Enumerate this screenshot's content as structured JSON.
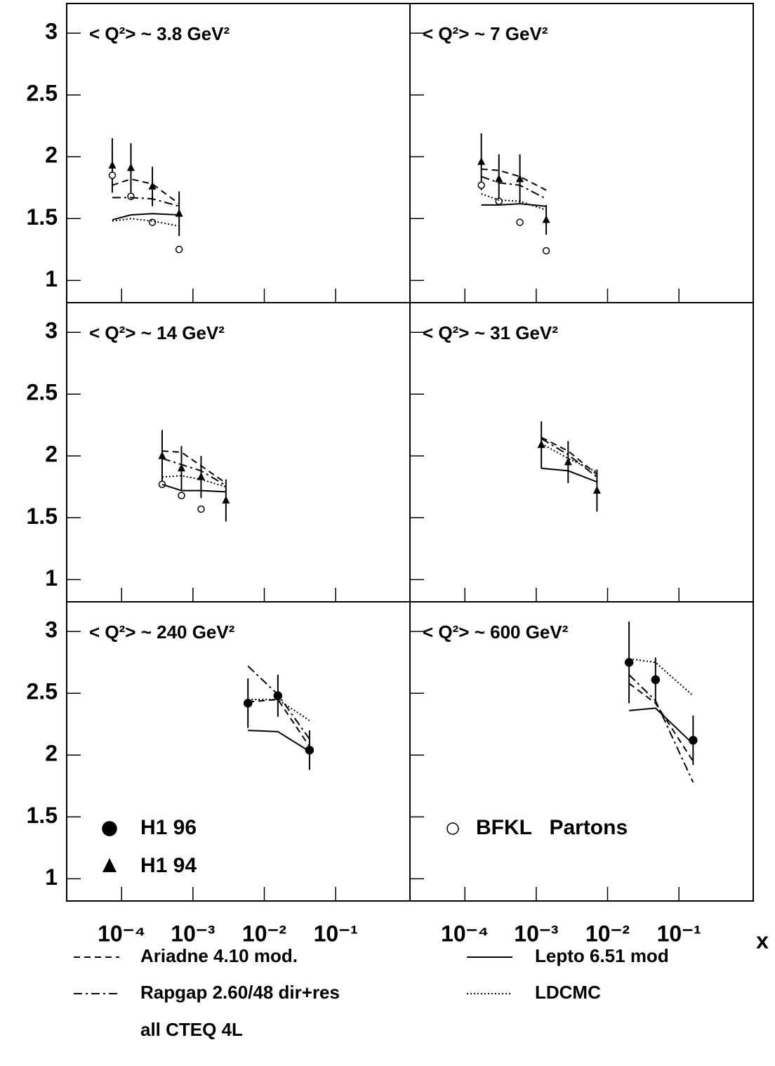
{
  "chart_data": {
    "type": "scatter",
    "log_x": true,
    "x_label": "x",
    "xlim": [
      1.7e-05,
      1.1
    ],
    "xticks": [
      {
        "value": 0.0001,
        "label": "10⁻⁴"
      },
      {
        "value": 0.001,
        "label": "10⁻³"
      },
      {
        "value": 0.01,
        "label": "10⁻²"
      },
      {
        "value": 0.1,
        "label": "10⁻¹"
      }
    ],
    "ylim": [
      0.82,
      3.24
    ],
    "yticks": [
      1,
      1.5,
      2,
      2.5,
      3
    ],
    "series": [
      {
        "name": "H1 96",
        "marker": "filled-circle",
        "color": "#000000"
      },
      {
        "name": "H1 94",
        "marker": "triangle",
        "color": "#000000"
      },
      {
        "name": "BFKL   Partons",
        "marker": "open-circle",
        "color": "#000000"
      },
      {
        "name": "Ariadne 4.10 mod.",
        "line": "dashed",
        "color": "#000000"
      },
      {
        "name": "Rapgap 2.60/48 dir+res",
        "line": "dash-dot",
        "color": "#000000"
      },
      {
        "name": "Lepto 6.51 mod",
        "line": "solid",
        "color": "#000000"
      },
      {
        "name": "LDCMC",
        "line": "dotted",
        "color": "#000000"
      }
    ],
    "note": "all CTEQ 4L",
    "panels": [
      {
        "title": "< Q²> ~ 3.8 GeV²",
        "x": [
          7.4e-05,
          0.000135,
          0.00027,
          0.00064
        ],
        "series": [
          {
            "values": [
              null,
              null,
              null,
              null
            ],
            "errors": [
              null,
              null,
              null,
              null
            ]
          },
          {
            "values": [
              1.93,
              1.91,
              1.76,
              1.54
            ],
            "errors": [
              0.22,
              0.2,
              0.16,
              0.18
            ]
          },
          {
            "values": [
              1.85,
              1.68,
              1.47,
              1.25
            ]
          },
          {
            "values": [
              1.77,
              1.82,
              1.78,
              1.62
            ]
          },
          {
            "values": [
              1.67,
              1.67,
              1.66,
              1.6
            ]
          },
          {
            "values": [
              1.49,
              1.53,
              1.54,
              1.53
            ]
          },
          {
            "values": [
              1.48,
              1.5,
              1.48,
              1.44
            ]
          }
        ]
      },
      {
        "title": "< Q²> ~ 7 GeV²",
        "x": [
          0.00017,
          0.0003,
          0.00059,
          0.00138
        ],
        "series": [
          {
            "values": [
              null,
              null,
              null,
              null
            ],
            "errors": [
              null,
              null,
              null,
              null
            ]
          },
          {
            "values": [
              1.96,
              1.82,
              1.82,
              1.49
            ],
            "errors": [
              0.23,
              0.2,
              0.2,
              0.12
            ]
          },
          {
            "values": [
              1.77,
              1.64,
              1.47,
              1.24
            ]
          },
          {
            "values": [
              1.9,
              1.89,
              1.84,
              1.73
            ]
          },
          {
            "values": [
              1.84,
              1.79,
              1.77,
              1.66
            ]
          },
          {
            "values": [
              1.61,
              1.61,
              1.62,
              1.6
            ]
          },
          {
            "values": [
              1.7,
              1.65,
              1.64,
              1.57
            ]
          }
        ]
      },
      {
        "title": "< Q²> ~ 14 GeV²",
        "x": [
          0.00037,
          0.00069,
          0.0013,
          0.0029
        ],
        "series": [
          {
            "values": [
              null,
              null,
              null,
              null
            ],
            "errors": [
              null,
              null,
              null,
              null
            ]
          },
          {
            "values": [
              2.0,
              1.9,
              1.83,
              1.64
            ],
            "errors": [
              0.21,
              0.18,
              0.17,
              0.17
            ]
          },
          {
            "values": [
              1.77,
              1.68,
              1.57,
              null
            ]
          },
          {
            "values": [
              2.04,
              2.03,
              1.92,
              1.78
            ]
          },
          {
            "values": [
              1.98,
              1.93,
              1.88,
              1.76
            ]
          },
          {
            "values": [
              1.77,
              1.72,
              1.72,
              1.71
            ]
          },
          {
            "values": [
              1.83,
              1.84,
              1.81,
              1.75
            ]
          }
        ]
      },
      {
        "title": "< Q²> ~ 31 GeV²",
        "x": [
          0.00118,
          0.0028,
          0.0071
        ],
        "series": [
          {
            "values": [
              null,
              null,
              null
            ],
            "errors": [
              null,
              null,
              null
            ]
          },
          {
            "values": [
              2.09,
              1.95,
              1.72
            ],
            "errors": [
              0.19,
              0.17,
              0.17
            ]
          },
          {
            "values": [
              null,
              null,
              null
            ]
          },
          {
            "values": [
              2.15,
              2.04,
              1.85
            ]
          },
          {
            "values": [
              2.14,
              2.01,
              1.83
            ]
          },
          {
            "values": [
              1.9,
              1.88,
              1.79
            ]
          },
          {
            "values": [
              2.1,
              1.98,
              1.87
            ]
          }
        ]
      },
      {
        "title": "< Q²> ~ 240 GeV²",
        "x": [
          0.0059,
          0.0155,
          0.043
        ],
        "series": [
          {
            "values": [
              2.42,
              2.48,
              2.04
            ],
            "errors": [
              0.2,
              0.17,
              0.16
            ]
          },
          {
            "values": [
              null,
              null,
              null
            ],
            "errors": [
              null,
              null,
              null
            ]
          },
          {
            "values": [
              null,
              null,
              null
            ]
          },
          {
            "values": [
              2.43,
              2.45,
              2.07
            ]
          },
          {
            "values": [
              2.72,
              2.49,
              2.13
            ]
          },
          {
            "values": [
              2.2,
              2.19,
              2.03
            ]
          },
          {
            "values": [
              2.45,
              2.45,
              2.28
            ]
          }
        ]
      },
      {
        "title": "< Q²> ~ 600 GeV²",
        "x": [
          0.02,
          0.047,
          0.158
        ],
        "series": [
          {
            "values": [
              2.75,
              2.61,
              2.12
            ],
            "errors": [
              0.33,
              0.18,
              0.2
            ]
          },
          {
            "values": [
              null,
              null,
              null
            ],
            "errors": [
              null,
              null,
              null
            ]
          },
          {
            "values": [
              null,
              null,
              null
            ]
          },
          {
            "values": [
              2.58,
              2.42,
              1.95
            ]
          },
          {
            "values": [
              2.65,
              2.44,
              1.78
            ]
          },
          {
            "values": [
              2.36,
              2.38,
              2.09
            ]
          },
          {
            "values": [
              2.78,
              2.75,
              2.48
            ]
          }
        ]
      }
    ]
  }
}
